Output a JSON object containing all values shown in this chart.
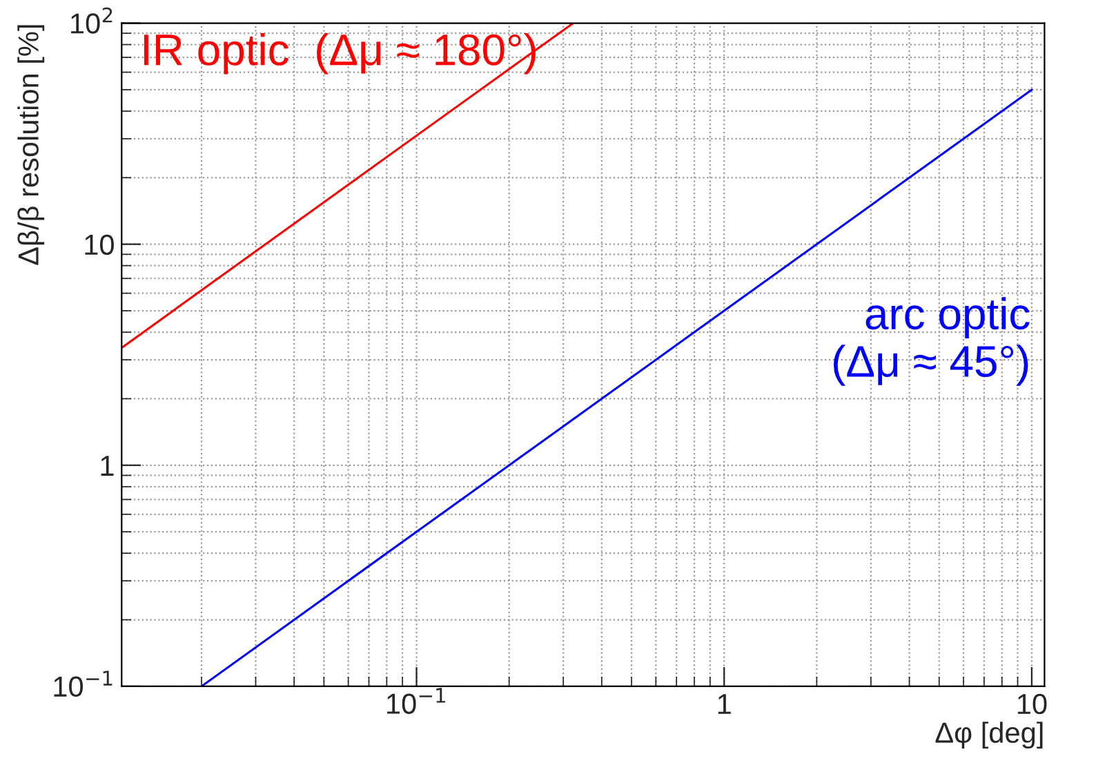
{
  "chart_data": {
    "type": "line",
    "xlabel": "Δφ [deg]",
    "ylabel": "Δβ/β resolution [%]",
    "log": "xy",
    "grid": true,
    "legend": false,
    "marker": "none",
    "line_style": "solid",
    "xlim": [
      0.011,
      11
    ],
    "xticks": [
      {
        "value": 0.1,
        "label": "10$^{−1}$"
      },
      1,
      10
    ],
    "ylim": [
      0.1,
      100
    ],
    "yticks": [
      {
        "value": 0.1,
        "label": "10$^{−1}$"
      },
      1,
      10,
      {
        "value": 100,
        "label": "10$^{2}$"
      }
    ],
    "series": [
      {
        "name": "IR optic  (Δμ ≈ 180°)",
        "color": "#ff0000",
        "x": [
          0.011,
          0.1,
          0.323
        ],
        "values": [
          3.4,
          31,
          100
        ]
      },
      {
        "name": "arc optic\n(Δμ ≈ 45°)",
        "color": "#0000ff",
        "x": [
          0.02,
          1,
          10
        ],
        "values": [
          0.1,
          5,
          50
        ]
      }
    ]
  }
}
